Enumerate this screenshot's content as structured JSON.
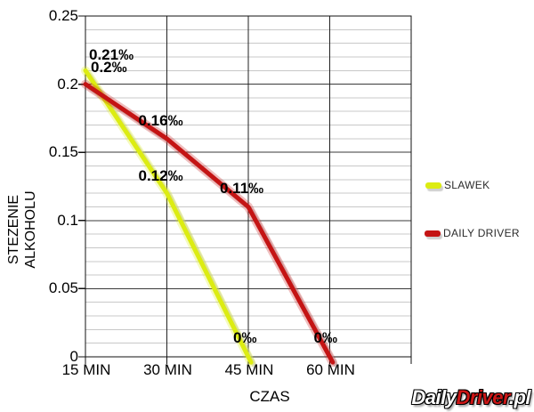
{
  "chart_data": {
    "type": "line",
    "title": "",
    "xlabel": "CZAS",
    "ylabel": "STEZENIE ALKOHOLU",
    "ylabel_lines": [
      "STEZENIE",
      "ALKOHOLU"
    ],
    "unit": "‰",
    "x_minutes": [
      15,
      30,
      45,
      60
    ],
    "x_tick_labels": [
      "15 MIN",
      "30 MIN",
      "45 MIN",
      "60 MIN"
    ],
    "xlim_minutes": [
      15,
      75
    ],
    "y_tick_values": [
      0,
      0.05,
      0.1,
      0.15,
      0.2,
      0.25
    ],
    "y_tick_labels": [
      "0",
      "0.05",
      "0.1",
      "0.15",
      "0.2",
      "0.25"
    ],
    "ylim": [
      0,
      0.25
    ],
    "grid": {
      "major": true,
      "minor_y_step": 0.01,
      "minor_color": "#c8c8c8",
      "major_color": "#3a3a3a",
      "border_color": "#111111"
    },
    "legend_position": "right",
    "series": [
      {
        "name": "SLAWEK",
        "color": "#dcec12",
        "x": [
          15,
          30,
          45
        ],
        "values": [
          0.21,
          0.12,
          0
        ],
        "point_labels": [
          "0.21‰",
          "0.12‰",
          "0‰"
        ]
      },
      {
        "name": "DAILY DRIVER",
        "color": "#c41414",
        "x": [
          15,
          30,
          45,
          60
        ],
        "values": [
          0.2,
          0.16,
          0.11,
          0
        ],
        "point_labels": [
          "0.2‰",
          "0.16‰",
          "0.11‰",
          "0‰"
        ]
      }
    ]
  },
  "legend": {
    "items": [
      {
        "label": "SLAWEK",
        "color": "#dcec12"
      },
      {
        "label": "DAILY DRIVER",
        "color": "#c41414"
      }
    ]
  },
  "watermark": {
    "daily": "Daily",
    "driver": "Driver",
    "pl": ".pl",
    "daily_color": "#ffffff",
    "driver_color": "#cc1616",
    "pl_color": "#ffffff"
  }
}
